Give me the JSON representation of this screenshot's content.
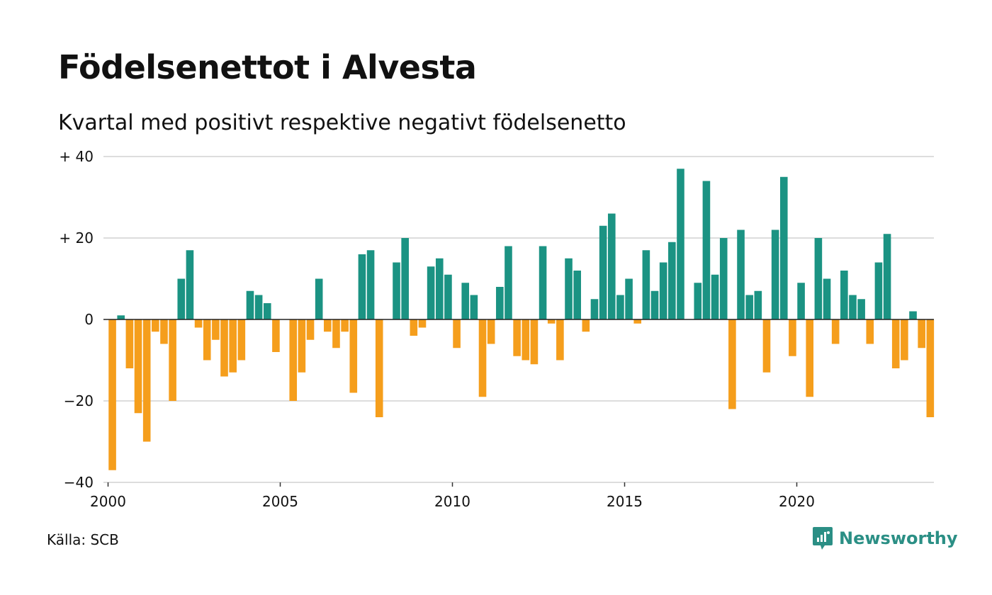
{
  "chart_data": {
    "type": "bar",
    "title": "Födelsenettot i Alvesta",
    "subtitle": "Kvartal med positivt respektive negativt födelsenetto",
    "ylim": [
      -40,
      40
    ],
    "y_ticks": [
      40,
      20,
      0,
      -20,
      -40
    ],
    "y_tick_labels": [
      "+ 40",
      "+ 20",
      "0",
      "−20",
      "−40"
    ],
    "x_ticks": [
      2000,
      2005,
      2010,
      2015,
      2020
    ],
    "x_tick_labels": [
      "2000",
      "2005",
      "2010",
      "2015",
      "2020"
    ],
    "x_start": 2000,
    "periods_per_year": 4,
    "grid": true,
    "legend": "none",
    "colors": {
      "positive": "#1b9383",
      "negative": "#f59e1c",
      "grid": "#dddddd",
      "zero_line": "#222222"
    },
    "values": [
      -37,
      1,
      -12,
      -23,
      -30,
      -3,
      -6,
      -20,
      10,
      17,
      -2,
      -10,
      -5,
      -14,
      -13,
      -10,
      7,
      6,
      4,
      -8,
      0,
      -20,
      -13,
      -5,
      10,
      -3,
      -7,
      -3,
      -18,
      16,
      17,
      -24,
      0,
      14,
      20,
      -4,
      -2,
      13,
      15,
      11,
      -7,
      9,
      6,
      -19,
      -6,
      8,
      18,
      -9,
      -10,
      -11,
      18,
      -1,
      -10,
      15,
      12,
      -3,
      5,
      23,
      26,
      6,
      10,
      -1,
      17,
      7,
      14,
      19,
      37,
      0,
      9,
      34,
      11,
      20,
      -22,
      22,
      6,
      7,
      -13,
      22,
      35,
      -9,
      9,
      -19,
      20,
      10,
      -6,
      12,
      6,
      5,
      -6,
      14,
      21,
      -12,
      -10,
      2,
      -7,
      -24
    ]
  },
  "source": "Källa: SCB",
  "brand": {
    "name": "Newsworthy",
    "icon": "newsworthy-logo-icon",
    "color": "#2b8f85"
  }
}
